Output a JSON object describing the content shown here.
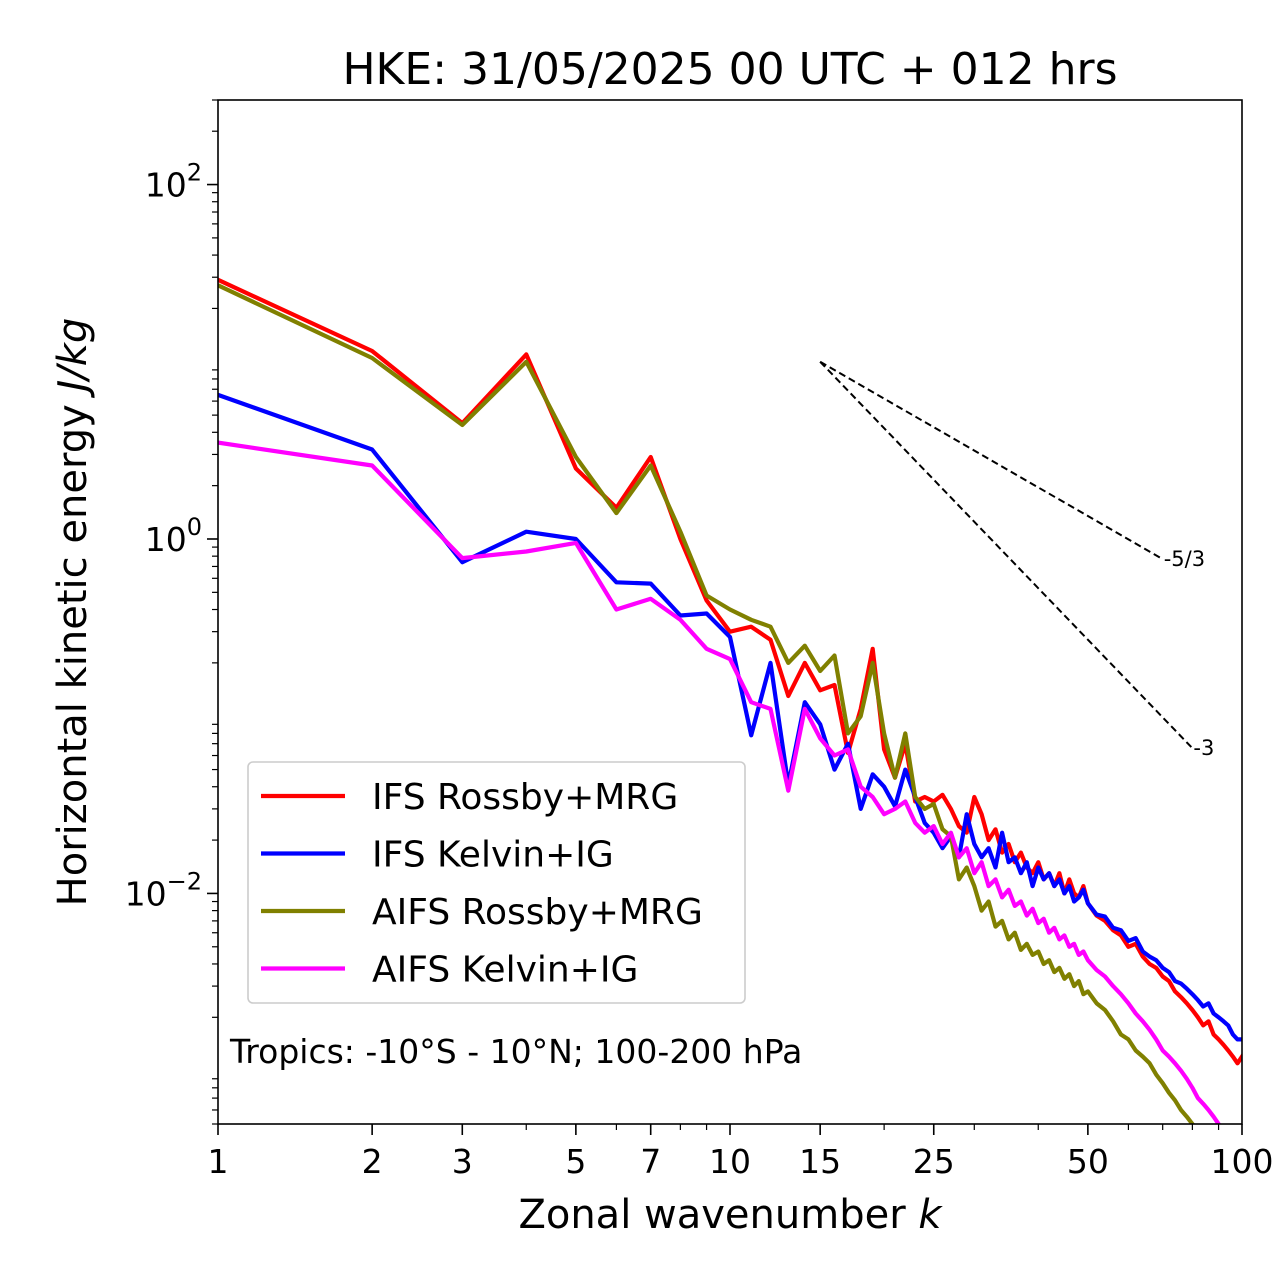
{
  "chart_data": {
    "type": "line",
    "title": "HKE: 31/05/2025 00 UTC + 012 hrs",
    "xlabel_text": "Zonal wavenumber ",
    "xlabel_var": "k",
    "ylabel_text": "Horizontal kinetic energy ",
    "ylabel_unit": "J/kg",
    "xscale": "log",
    "yscale": "log",
    "xlim": [
      1,
      100
    ],
    "ylim": [
      0.0005,
      300
    ],
    "x_ticks": [
      {
        "value": 1,
        "label": "1"
      },
      {
        "value": 2,
        "label": "2"
      },
      {
        "value": 3,
        "label": "3"
      },
      {
        "value": 5,
        "label": "5"
      },
      {
        "value": 7,
        "label": "7"
      },
      {
        "value": 10,
        "label": "10"
      },
      {
        "value": 15,
        "label": "15"
      },
      {
        "value": 25,
        "label": "25"
      },
      {
        "value": 50,
        "label": "50"
      },
      {
        "value": 100,
        "label": "100"
      }
    ],
    "y_ticks": [
      {
        "value": 100,
        "base": "10",
        "exp": "2"
      },
      {
        "value": 1,
        "base": "10",
        "exp": "0"
      },
      {
        "value": 0.01,
        "base": "10",
        "exp": "−2"
      }
    ],
    "legend_position": "lower-left",
    "annotation": "Tropics: -10°S - 10°N; 100-200 hPa",
    "reference_slopes": [
      {
        "label": "-5/3",
        "x_start": 15,
        "y_start": 10,
        "x_end": 70,
        "y_end": 0.77
      },
      {
        "label": "-3",
        "x_start": 15,
        "y_start": 10,
        "x_end": 80,
        "y_end": 0.066
      }
    ],
    "series": [
      {
        "name": "IFS Rossby+MRG",
        "color": "#ff0000",
        "points": [
          [
            1,
            29
          ],
          [
            2,
            11.5
          ],
          [
            3,
            4.5
          ],
          [
            4,
            11
          ],
          [
            5,
            2.5
          ],
          [
            6,
            1.5
          ],
          [
            7,
            2.9
          ],
          [
            8,
            1.0
          ],
          [
            9,
            0.45
          ],
          [
            10,
            0.3
          ],
          [
            11,
            0.32
          ],
          [
            12,
            0.27
          ],
          [
            13,
            0.13
          ],
          [
            14,
            0.2
          ],
          [
            15,
            0.14
          ],
          [
            16,
            0.15
          ],
          [
            17,
            0.062
          ],
          [
            18,
            0.11
          ],
          [
            19,
            0.24
          ],
          [
            20,
            0.065
          ],
          [
            21,
            0.045
          ],
          [
            22,
            0.07
          ],
          [
            23,
            0.033
          ],
          [
            24,
            0.035
          ],
          [
            25,
            0.033
          ],
          [
            26,
            0.036
          ],
          [
            27,
            0.03
          ],
          [
            28,
            0.024
          ],
          [
            29,
            0.022
          ],
          [
            30,
            0.035
          ],
          [
            31,
            0.028
          ],
          [
            32,
            0.02
          ],
          [
            33,
            0.023
          ],
          [
            34,
            0.017
          ],
          [
            35,
            0.019
          ],
          [
            36,
            0.015
          ],
          [
            37,
            0.017
          ],
          [
            38,
            0.014
          ],
          [
            39,
            0.013
          ],
          [
            40,
            0.015
          ],
          [
            41,
            0.012
          ],
          [
            42,
            0.013
          ],
          [
            43,
            0.011
          ],
          [
            44,
            0.013
          ],
          [
            45,
            0.01
          ],
          [
            46,
            0.012
          ],
          [
            47,
            0.01
          ],
          [
            48,
            0.0095
          ],
          [
            49,
            0.011
          ],
          [
            50,
            0.0088
          ],
          [
            52,
            0.0075
          ],
          [
            54,
            0.007
          ],
          [
            56,
            0.0062
          ],
          [
            58,
            0.0058
          ],
          [
            60,
            0.005
          ],
          [
            62,
            0.0052
          ],
          [
            64,
            0.0044
          ],
          [
            66,
            0.004
          ],
          [
            68,
            0.0038
          ],
          [
            70,
            0.0034
          ],
          [
            72,
            0.0032
          ],
          [
            74,
            0.0028
          ],
          [
            76,
            0.0026
          ],
          [
            78,
            0.0024
          ],
          [
            80,
            0.0022
          ],
          [
            82,
            0.002
          ],
          [
            84,
            0.0018
          ],
          [
            86,
            0.0019
          ],
          [
            88,
            0.0016
          ],
          [
            90,
            0.0015
          ],
          [
            92,
            0.0014
          ],
          [
            94,
            0.0013
          ],
          [
            96,
            0.0012
          ],
          [
            98,
            0.0011
          ],
          [
            100,
            0.0012
          ]
        ]
      },
      {
        "name": "IFS Kelvin+IG",
        "color": "#0000ff",
        "points": [
          [
            1,
            6.5
          ],
          [
            2,
            3.2
          ],
          [
            3,
            0.74
          ],
          [
            4,
            1.1
          ],
          [
            5,
            1.0
          ],
          [
            6,
            0.57
          ],
          [
            7,
            0.56
          ],
          [
            8,
            0.37
          ],
          [
            9,
            0.38
          ],
          [
            10,
            0.28
          ],
          [
            11,
            0.078
          ],
          [
            12,
            0.2
          ],
          [
            13,
            0.041
          ],
          [
            14,
            0.12
          ],
          [
            15,
            0.09
          ],
          [
            16,
            0.05
          ],
          [
            17,
            0.07
          ],
          [
            18,
            0.03
          ],
          [
            19,
            0.047
          ],
          [
            20,
            0.04
          ],
          [
            21,
            0.031
          ],
          [
            22,
            0.05
          ],
          [
            23,
            0.035
          ],
          [
            24,
            0.025
          ],
          [
            25,
            0.022
          ],
          [
            26,
            0.018
          ],
          [
            27,
            0.021
          ],
          [
            28,
            0.016
          ],
          [
            29,
            0.028
          ],
          [
            30,
            0.019
          ],
          [
            31,
            0.016
          ],
          [
            32,
            0.018
          ],
          [
            33,
            0.014
          ],
          [
            34,
            0.022
          ],
          [
            35,
            0.015
          ],
          [
            36,
            0.016
          ],
          [
            37,
            0.013
          ],
          [
            38,
            0.015
          ],
          [
            39,
            0.011
          ],
          [
            40,
            0.014
          ],
          [
            41,
            0.012
          ],
          [
            42,
            0.013
          ],
          [
            43,
            0.011
          ],
          [
            44,
            0.012
          ],
          [
            45,
            0.01
          ],
          [
            46,
            0.011
          ],
          [
            47,
            0.009
          ],
          [
            48,
            0.0095
          ],
          [
            49,
            0.0105
          ],
          [
            50,
            0.0088
          ],
          [
            52,
            0.0076
          ],
          [
            54,
            0.0074
          ],
          [
            56,
            0.0064
          ],
          [
            58,
            0.0062
          ],
          [
            60,
            0.0054
          ],
          [
            62,
            0.0056
          ],
          [
            64,
            0.0047
          ],
          [
            66,
            0.0044
          ],
          [
            68,
            0.0042
          ],
          [
            70,
            0.0038
          ],
          [
            72,
            0.0036
          ],
          [
            74,
            0.0032
          ],
          [
            76,
            0.0031
          ],
          [
            78,
            0.0029
          ],
          [
            80,
            0.0027
          ],
          [
            82,
            0.0025
          ],
          [
            84,
            0.0023
          ],
          [
            86,
            0.0024
          ],
          [
            88,
            0.0021
          ],
          [
            90,
            0.002
          ],
          [
            92,
            0.0019
          ],
          [
            94,
            0.0018
          ],
          [
            96,
            0.0016
          ],
          [
            98,
            0.0015
          ],
          [
            100,
            0.0015
          ]
        ]
      },
      {
        "name": "AIFS Rossby+MRG",
        "color": "#808000",
        "points": [
          [
            1,
            27
          ],
          [
            2,
            10.5
          ],
          [
            3,
            4.4
          ],
          [
            4,
            10
          ],
          [
            5,
            2.9
          ],
          [
            6,
            1.4
          ],
          [
            7,
            2.6
          ],
          [
            8,
            1.1
          ],
          [
            9,
            0.48
          ],
          [
            10,
            0.4
          ],
          [
            11,
            0.35
          ],
          [
            12,
            0.32
          ],
          [
            13,
            0.2
          ],
          [
            14,
            0.25
          ],
          [
            15,
            0.18
          ],
          [
            16,
            0.22
          ],
          [
            17,
            0.08
          ],
          [
            18,
            0.1
          ],
          [
            19,
            0.2
          ],
          [
            20,
            0.08
          ],
          [
            21,
            0.045
          ],
          [
            22,
            0.08
          ],
          [
            23,
            0.035
          ],
          [
            24,
            0.03
          ],
          [
            25,
            0.032
          ],
          [
            26,
            0.023
          ],
          [
            27,
            0.021
          ],
          [
            28,
            0.012
          ],
          [
            29,
            0.014
          ],
          [
            30,
            0.011
          ],
          [
            31,
            0.008
          ],
          [
            32,
            0.009
          ],
          [
            33,
            0.0065
          ],
          [
            34,
            0.007
          ],
          [
            35,
            0.0055
          ],
          [
            36,
            0.006
          ],
          [
            37,
            0.0048
          ],
          [
            38,
            0.0052
          ],
          [
            39,
            0.0045
          ],
          [
            40,
            0.0047
          ],
          [
            41,
            0.004
          ],
          [
            42,
            0.0042
          ],
          [
            43,
            0.0036
          ],
          [
            44,
            0.0038
          ],
          [
            45,
            0.0033
          ],
          [
            46,
            0.0035
          ],
          [
            47,
            0.003
          ],
          [
            48,
            0.0032
          ],
          [
            49,
            0.0027
          ],
          [
            50,
            0.0028
          ],
          [
            52,
            0.0024
          ],
          [
            54,
            0.0022
          ],
          [
            56,
            0.0019
          ],
          [
            58,
            0.0016
          ],
          [
            60,
            0.0015
          ],
          [
            62,
            0.0013
          ],
          [
            64,
            0.0012
          ],
          [
            66,
            0.0011
          ],
          [
            68,
            0.00095
          ],
          [
            70,
            0.00085
          ],
          [
            72,
            0.00075
          ],
          [
            74,
            0.00068
          ],
          [
            76,
            0.0006
          ],
          [
            78,
            0.00055
          ],
          [
            80,
            0.0005
          ]
        ]
      },
      {
        "name": "AIFS Kelvin+IG",
        "color": "#ff00ff",
        "points": [
          [
            1,
            3.5
          ],
          [
            2,
            2.6
          ],
          [
            3,
            0.78
          ],
          [
            4,
            0.85
          ],
          [
            5,
            0.95
          ],
          [
            6,
            0.4
          ],
          [
            7,
            0.46
          ],
          [
            8,
            0.35
          ],
          [
            9,
            0.24
          ],
          [
            10,
            0.21
          ],
          [
            11,
            0.12
          ],
          [
            12,
            0.11
          ],
          [
            13,
            0.038
          ],
          [
            14,
            0.11
          ],
          [
            15,
            0.075
          ],
          [
            16,
            0.06
          ],
          [
            17,
            0.065
          ],
          [
            18,
            0.04
          ],
          [
            19,
            0.035
          ],
          [
            20,
            0.028
          ],
          [
            21,
            0.03
          ],
          [
            22,
            0.033
          ],
          [
            23,
            0.025
          ],
          [
            24,
            0.022
          ],
          [
            25,
            0.024
          ],
          [
            26,
            0.019
          ],
          [
            27,
            0.022
          ],
          [
            28,
            0.016
          ],
          [
            29,
            0.018
          ],
          [
            30,
            0.013
          ],
          [
            31,
            0.015
          ],
          [
            32,
            0.011
          ],
          [
            33,
            0.012
          ],
          [
            34,
            0.0095
          ],
          [
            35,
            0.0105
          ],
          [
            36,
            0.0085
          ],
          [
            37,
            0.009
          ],
          [
            38,
            0.0075
          ],
          [
            39,
            0.0082
          ],
          [
            40,
            0.0068
          ],
          [
            41,
            0.0072
          ],
          [
            42,
            0.006
          ],
          [
            43,
            0.0064
          ],
          [
            44,
            0.0055
          ],
          [
            45,
            0.0058
          ],
          [
            46,
            0.005
          ],
          [
            47,
            0.0052
          ],
          [
            48,
            0.0045
          ],
          [
            49,
            0.0047
          ],
          [
            50,
            0.0042
          ],
          [
            52,
            0.0037
          ],
          [
            54,
            0.0034
          ],
          [
            56,
            0.003
          ],
          [
            58,
            0.0027
          ],
          [
            60,
            0.0024
          ],
          [
            62,
            0.0021
          ],
          [
            64,
            0.0019
          ],
          [
            66,
            0.0017
          ],
          [
            68,
            0.0015
          ],
          [
            70,
            0.0013
          ],
          [
            72,
            0.0012
          ],
          [
            74,
            0.0011
          ],
          [
            76,
            0.001
          ],
          [
            78,
            0.0009
          ],
          [
            80,
            0.0008
          ],
          [
            82,
            0.0007
          ],
          [
            84,
            0.00065
          ],
          [
            86,
            0.0006
          ],
          [
            88,
            0.00055
          ],
          [
            90,
            0.0005
          ]
        ]
      }
    ]
  }
}
